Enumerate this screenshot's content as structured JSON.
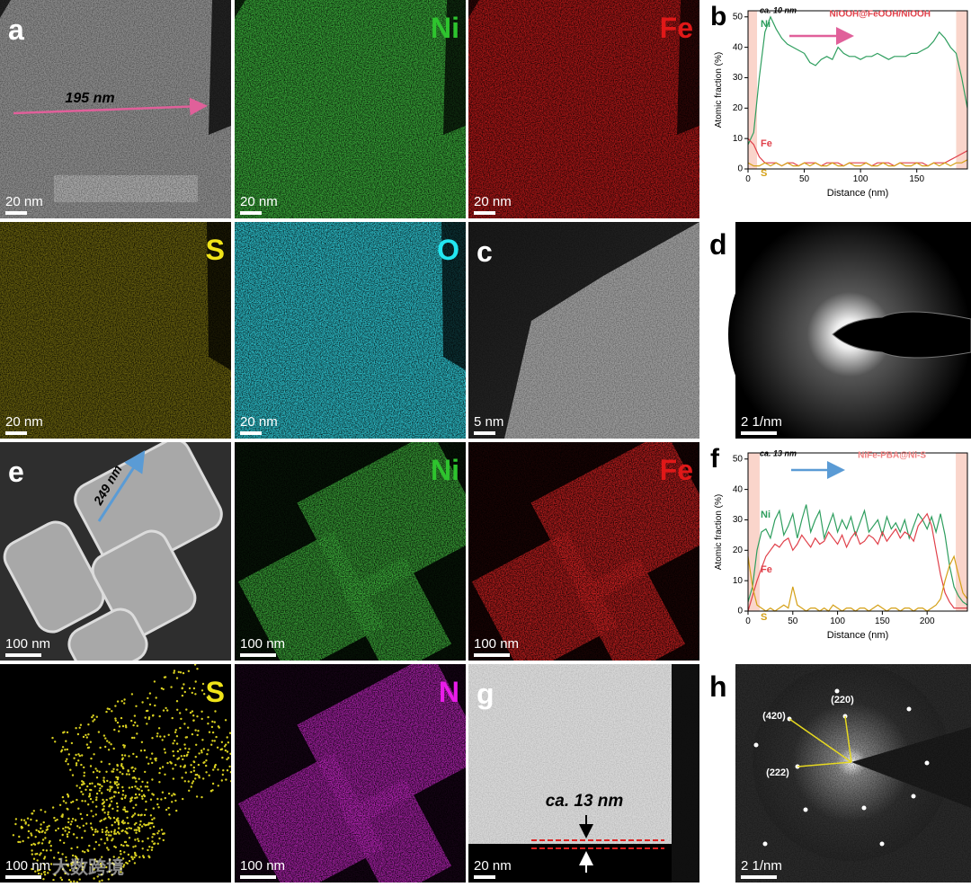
{
  "panels": [
    {
      "letter": "a",
      "annotation": "195 nm",
      "scale_bar": "20 nm"
    },
    {
      "element": "Ni",
      "scale_bar": "20 nm"
    },
    {
      "element": "Fe",
      "scale_bar": "20 nm"
    },
    {
      "element": "S",
      "scale_bar": "20 nm"
    },
    {
      "element": "O",
      "scale_bar": "20 nm"
    },
    {
      "letter": "c",
      "scale_bar": "5 nm"
    },
    {
      "letter": "d",
      "scale_bar": "2 1/nm"
    },
    {
      "letter": "e",
      "annotation": "249 nm",
      "scale_bar": "100 nm"
    },
    {
      "element": "Ni",
      "scale_bar": "100 nm"
    },
    {
      "element": "Fe",
      "scale_bar": "100 nm"
    },
    {
      "element": "S",
      "scale_bar": "100 nm"
    },
    {
      "element": "N",
      "scale_bar": "100 nm"
    },
    {
      "letter": "g",
      "annotation": "ca. 13 nm",
      "scale_bar": "20 nm"
    },
    {
      "letter": "h",
      "reflections": [
        "(420)",
        "(220)",
        "(222)"
      ],
      "scale_bar": "2 1/nm"
    }
  ],
  "watermark": "大数跨境",
  "chart_data": [
    {
      "type": "line",
      "panel_label": "b",
      "annotations": [
        "ca. 10 nm",
        "NiOOH@FeOOH/NiOOH"
      ],
      "xlabel": "Distance (nm)",
      "ylabel": "Atomic fraction (%)",
      "x": [
        0,
        5,
        10,
        15,
        20,
        25,
        30,
        35,
        40,
        45,
        50,
        55,
        60,
        65,
        70,
        75,
        80,
        85,
        90,
        95,
        100,
        105,
        110,
        115,
        120,
        125,
        130,
        135,
        140,
        145,
        150,
        155,
        160,
        165,
        170,
        175,
        180,
        185,
        190,
        195
      ],
      "series": [
        {
          "name": "Ni",
          "color": "#2e9e5e",
          "values": [
            8,
            12,
            30,
            45,
            50,
            46,
            43,
            41,
            40,
            39,
            38,
            35,
            34,
            36,
            37,
            36,
            40,
            38,
            37,
            37,
            36,
            37,
            37,
            38,
            37,
            36,
            37,
            37,
            37,
            38,
            38,
            39,
            40,
            42,
            45,
            43,
            40,
            38,
            30,
            20
          ]
        },
        {
          "name": "Fe",
          "color": "#e0404a",
          "values": [
            10,
            8,
            4,
            2,
            2,
            2,
            1,
            2,
            2,
            1,
            2,
            2,
            2,
            1,
            2,
            2,
            2,
            1,
            2,
            2,
            2,
            2,
            1,
            2,
            2,
            2,
            1,
            2,
            2,
            2,
            2,
            2,
            1,
            2,
            2,
            2,
            3,
            4,
            5,
            6
          ]
        },
        {
          "name": "S",
          "color": "#d4a017",
          "values": [
            2,
            1,
            1,
            2,
            1,
            2,
            1,
            2,
            1,
            1,
            2,
            1,
            2,
            1,
            1,
            2,
            1,
            1,
            2,
            1,
            1,
            2,
            1,
            1,
            2,
            1,
            1,
            2,
            1,
            1,
            2,
            1,
            1,
            2,
            1,
            2,
            1,
            2,
            2,
            3
          ]
        }
      ],
      "xlim": [
        0,
        195
      ],
      "ylim": [
        0,
        52
      ],
      "xticks": [
        0,
        50,
        100,
        150
      ],
      "yticks": [
        0,
        10,
        20,
        30,
        40,
        50
      ],
      "shaded": [
        [
          0,
          8
        ],
        [
          185,
          195
        ]
      ]
    },
    {
      "type": "line",
      "panel_label": "f",
      "annotations": [
        "ca. 13 nm",
        "NiFe-PBA@Ni-S"
      ],
      "xlabel": "Distance (nm)",
      "ylabel": "Atomic fraction (%)",
      "x": [
        0,
        5,
        10,
        15,
        20,
        25,
        30,
        35,
        40,
        45,
        50,
        55,
        60,
        65,
        70,
        75,
        80,
        85,
        90,
        95,
        100,
        105,
        110,
        115,
        120,
        125,
        130,
        135,
        140,
        145,
        150,
        155,
        160,
        165,
        170,
        175,
        180,
        185,
        190,
        195,
        200,
        205,
        210,
        215,
        220,
        225,
        230,
        235,
        240,
        245
      ],
      "series": [
        {
          "name": "Ni",
          "color": "#2e9e5e",
          "values": [
            3,
            8,
            20,
            26,
            27,
            24,
            30,
            33,
            25,
            28,
            32,
            24,
            30,
            35,
            26,
            30,
            33,
            24,
            28,
            32,
            26,
            30,
            27,
            31,
            25,
            29,
            33,
            26,
            28,
            30,
            25,
            31,
            27,
            29,
            26,
            30,
            24,
            28,
            32,
            30,
            27,
            31,
            26,
            32,
            25,
            15,
            8,
            5,
            3,
            2
          ]
        },
        {
          "name": "Fe",
          "color": "#e0404a",
          "values": [
            0,
            5,
            10,
            14,
            18,
            20,
            22,
            21,
            23,
            24,
            20,
            22,
            25,
            23,
            21,
            24,
            22,
            23,
            26,
            24,
            22,
            25,
            21,
            24,
            26,
            22,
            23,
            25,
            24,
            22,
            26,
            23,
            25,
            27,
            24,
            26,
            25,
            23,
            28,
            30,
            32,
            28,
            20,
            12,
            6,
            3,
            1,
            1,
            1,
            1
          ]
        },
        {
          "name": "S",
          "color": "#d4a017",
          "values": [
            18,
            8,
            2,
            1,
            0,
            1,
            0,
            1,
            2,
            1,
            8,
            2,
            1,
            0,
            1,
            1,
            0,
            1,
            0,
            2,
            1,
            0,
            1,
            1,
            0,
            1,
            1,
            0,
            1,
            2,
            1,
            0,
            1,
            1,
            0,
            1,
            1,
            0,
            1,
            1,
            0,
            1,
            2,
            4,
            10,
            15,
            18,
            12,
            6,
            4
          ]
        }
      ],
      "xlim": [
        0,
        245
      ],
      "ylim": [
        0,
        52
      ],
      "xticks": [
        0,
        50,
        100,
        150,
        200
      ],
      "yticks": [
        0,
        10,
        20,
        30,
        40,
        50
      ],
      "shaded": [
        [
          0,
          13
        ],
        [
          232,
          245
        ]
      ]
    }
  ]
}
